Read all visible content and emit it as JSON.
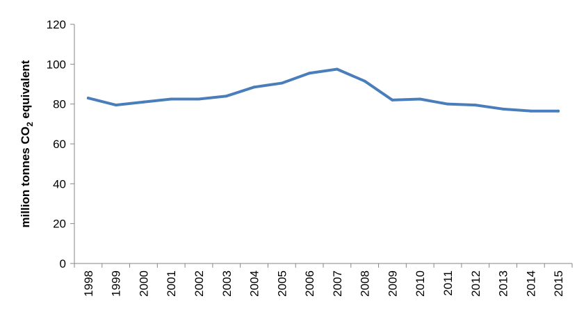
{
  "chart_data": {
    "type": "line",
    "title": "",
    "xlabel": "",
    "ylabel": {
      "prefix": "million tonnes CO",
      "subscript": "2",
      "suffix": " equivalent"
    },
    "x": [
      "1998",
      "1999",
      "2000",
      "2001",
      "2002",
      "2003",
      "2004",
      "2005",
      "2006",
      "2007",
      "2008",
      "2009",
      "2010",
      "2011",
      "2012",
      "2013",
      "2014",
      "2015"
    ],
    "series": [
      {
        "color": "#4A7EBB",
        "values": [
          83,
          79.5,
          81,
          82.5,
          82.5,
          84,
          88.5,
          90.5,
          95.5,
          97.5,
          91.5,
          82,
          82.5,
          80,
          79.5,
          77.5,
          76.5,
          76.5
        ]
      }
    ],
    "ylim": [
      0,
      120
    ],
    "yticks": [
      0,
      20,
      40,
      60,
      80,
      100,
      120
    ],
    "grid": false,
    "legend": "none",
    "colors": {
      "line": "#4A7EBB",
      "axis": "#868686",
      "text": "#000000"
    }
  }
}
